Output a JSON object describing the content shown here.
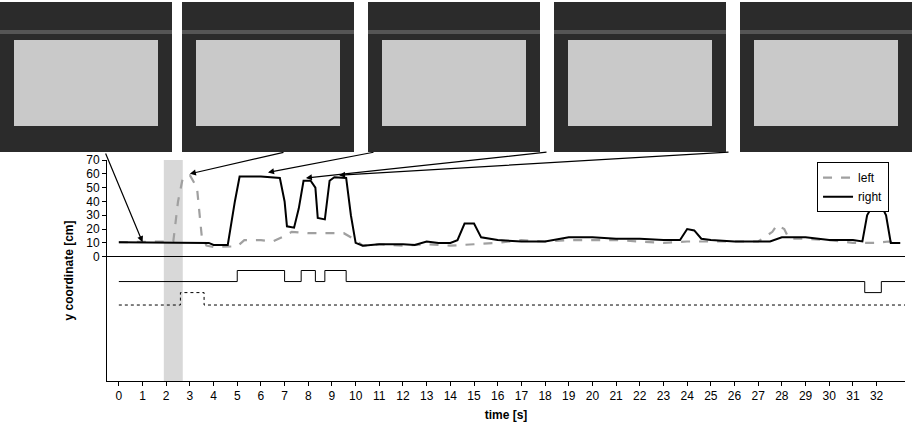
{
  "chart_data": {
    "type": "line",
    "x_label": "time [s]",
    "y_label": "y coordinate [cm]",
    "xlim": [
      -0.5,
      33.2
    ],
    "xticks": [
      0,
      1,
      2,
      3,
      4,
      5,
      6,
      7,
      8,
      9,
      10,
      11,
      12,
      13,
      14,
      15,
      16,
      17,
      18,
      19,
      20,
      21,
      22,
      23,
      24,
      25,
      26,
      27,
      28,
      29,
      30,
      31,
      32
    ],
    "ylim": [
      -90,
      70
    ],
    "yticks": [
      0,
      10,
      20,
      30,
      40,
      50,
      60,
      70
    ],
    "grid": false,
    "legend": "top right",
    "highlight": {
      "x0": 1.9,
      "x1": 2.7
    },
    "annotations": [
      {
        "x": 1,
        "y": 10.5
      },
      {
        "x": 3.0,
        "y": 60
      },
      {
        "x": 6.3,
        "y": 61
      },
      {
        "x": 7.9,
        "y": 57
      },
      {
        "x": 9.3,
        "y": 59
      }
    ],
    "series": [
      {
        "name": "left",
        "type": "line",
        "color": "#a0a0a0",
        "line_style": "dash",
        "x": [
          0,
          1.9,
          2.3,
          2.5,
          2.7,
          3,
          3.3,
          3.5,
          3.7,
          4,
          5,
          5.3,
          6,
          6.5,
          7,
          7.3,
          8,
          9,
          9.5,
          10,
          10.3,
          11,
          12,
          13,
          14,
          15,
          16,
          17,
          18,
          19,
          20,
          21,
          22,
          23,
          24,
          25,
          26,
          27,
          27.6,
          27.8,
          28.1,
          28.3,
          29,
          30,
          31,
          32,
          32.5,
          33
        ],
        "values": [
          10.5,
          10.5,
          11,
          40,
          57,
          59,
          50,
          15,
          8,
          7,
          7.5,
          12,
          12,
          11,
          15,
          18,
          17,
          17,
          17,
          12,
          8,
          9,
          8,
          9,
          8,
          9,
          10,
          12,
          11,
          12,
          12,
          12,
          11,
          10,
          11,
          11,
          11,
          11,
          18,
          23,
          20,
          13,
          13,
          12,
          10,
          10,
          11,
          10
        ]
      },
      {
        "name": "right",
        "type": "line",
        "color": "#000000",
        "line_style": "solid",
        "x": [
          0,
          3.8,
          4,
          4.6,
          4.9,
          5.1,
          6,
          6.8,
          7,
          7.1,
          7.4,
          7.6,
          7.8,
          8.1,
          8.3,
          8.4,
          8.7,
          8.9,
          9.1,
          9.6,
          9.8,
          10,
          10.3,
          11,
          12,
          12.5,
          13,
          13.5,
          14,
          14.3,
          14.6,
          15,
          15.3,
          16,
          17,
          18,
          19,
          19.5,
          20,
          21,
          22,
          23,
          23.7,
          24,
          24.3,
          24.6,
          25,
          26,
          27,
          27.5,
          28,
          29,
          30,
          31,
          31.4,
          31.6,
          31.8,
          32.2,
          32.4,
          32.6,
          33
        ],
        "values": [
          10.5,
          10,
          8.5,
          8.5,
          40,
          58,
          58,
          57,
          40,
          22,
          21,
          35,
          55,
          55,
          50,
          28,
          27,
          55,
          57.5,
          57,
          30,
          10,
          8,
          9,
          9,
          8.5,
          11,
          10,
          10,
          12,
          24,
          24,
          14,
          12,
          11,
          11,
          14,
          14,
          14,
          13,
          13,
          12,
          12,
          20,
          19,
          13,
          12,
          11,
          11,
          11,
          14,
          14,
          12,
          12,
          11,
          30,
          36,
          37,
          30,
          10,
          10
        ]
      },
      {
        "name": "right",
        "type": "step",
        "color": "#000000",
        "line_style": "solid",
        "x": [
          0,
          5,
          7,
          7.7,
          8.3,
          8.7,
          9.6,
          31.5,
          32.2,
          33.2
        ],
        "values": [
          -18,
          -10,
          -18,
          -10,
          -18,
          -10,
          -18,
          -26,
          -18,
          -18
        ]
      },
      {
        "name": "left",
        "type": "step",
        "color": "#000000",
        "line_style": "dot",
        "x": [
          0,
          2.6,
          3.6,
          33.2
        ],
        "values": [
          -35,
          -26,
          -35,
          -35
        ]
      }
    ]
  }
}
